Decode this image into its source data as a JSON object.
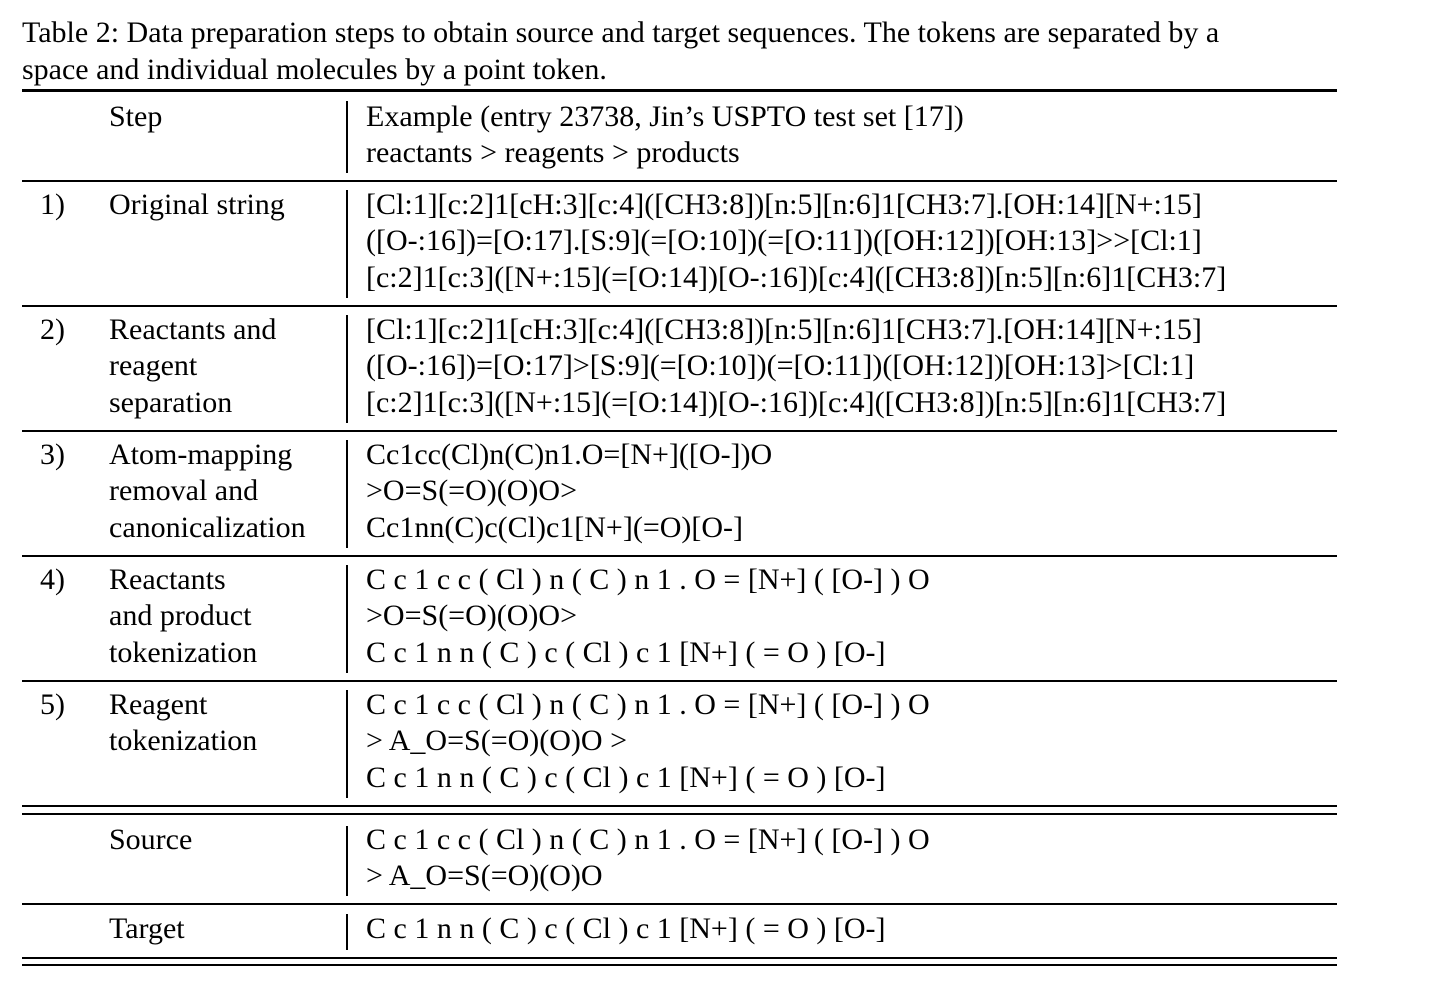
{
  "caption": {
    "line1": "Table 2: Data preparation steps to obtain source and target sequences. The tokens are separated by a",
    "line2": "space and individual molecules by a point token."
  },
  "header": {
    "step": "Step",
    "example_line1": "Example (entry 23738, Jin’s USPTO test set [17])",
    "example_line2": "reactants > reagents > products"
  },
  "rows": [
    {
      "num": "1)",
      "step": [
        "Original string"
      ],
      "example": [
        "[Cl:1][c:2]1[cH:3][c:4]([CH3:8])[n:5][n:6]1[CH3:7].[OH:14][N+:15]",
        "([O-:16])=[O:17].[S:9](=[O:10])(=[O:11])([OH:12])[OH:13]>>[Cl:1]",
        "[c:2]1[c:3]([N+:15](=[O:14])[O-:16])[c:4]([CH3:8])[n:5][n:6]1[CH3:7]"
      ]
    },
    {
      "num": "2)",
      "step": [
        "Reactants and",
        "reagent",
        "separation"
      ],
      "example": [
        "[Cl:1][c:2]1[cH:3][c:4]([CH3:8])[n:5][n:6]1[CH3:7].[OH:14][N+:15]",
        "([O-:16])=[O:17]>[S:9](=[O:10])(=[O:11])([OH:12])[OH:13]>[Cl:1]",
        "[c:2]1[c:3]([N+:15](=[O:14])[O-:16])[c:4]([CH3:8])[n:5][n:6]1[CH3:7]"
      ]
    },
    {
      "num": "3)",
      "step": [
        "Atom-mapping",
        "removal and",
        "canonicalization"
      ],
      "example": [
        "Cc1cc(Cl)n(C)n1.O=[N+]([O-])O",
        ">O=S(=O)(O)O>",
        "Cc1nn(C)c(Cl)c1[N+](=O)[O-]"
      ]
    },
    {
      "num": "4)",
      "step": [
        "Reactants",
        "and product",
        "tokenization"
      ],
      "example": [
        "C c 1 c c ( Cl ) n ( C ) n 1 . O = [N+] ( [O-] ) O",
        ">O=S(=O)(O)O>",
        "C c 1 n n ( C ) c ( Cl ) c 1 [N+] ( = O ) [O-]"
      ]
    },
    {
      "num": "5)",
      "step": [
        "Reagent",
        "tokenization"
      ],
      "example": [
        "C c 1 c c ( Cl ) n ( C ) n 1 . O = [N+] ( [O-] ) O",
        "> A_O=S(=O)(O)O >",
        "C c 1 n n ( C ) c ( Cl ) c 1 [N+] ( = O ) [O-]"
      ]
    }
  ],
  "source": {
    "label": "Source",
    "example": [
      "C c 1 c c ( Cl ) n ( C ) n 1 . O = [N+] ( [O-] ) O",
      "> A_O=S(=O)(O)O"
    ]
  },
  "target": {
    "label": "Target",
    "example": [
      "C c 1 n n ( C ) c ( Cl ) c 1 [N+] ( = O ) [O-]"
    ]
  }
}
